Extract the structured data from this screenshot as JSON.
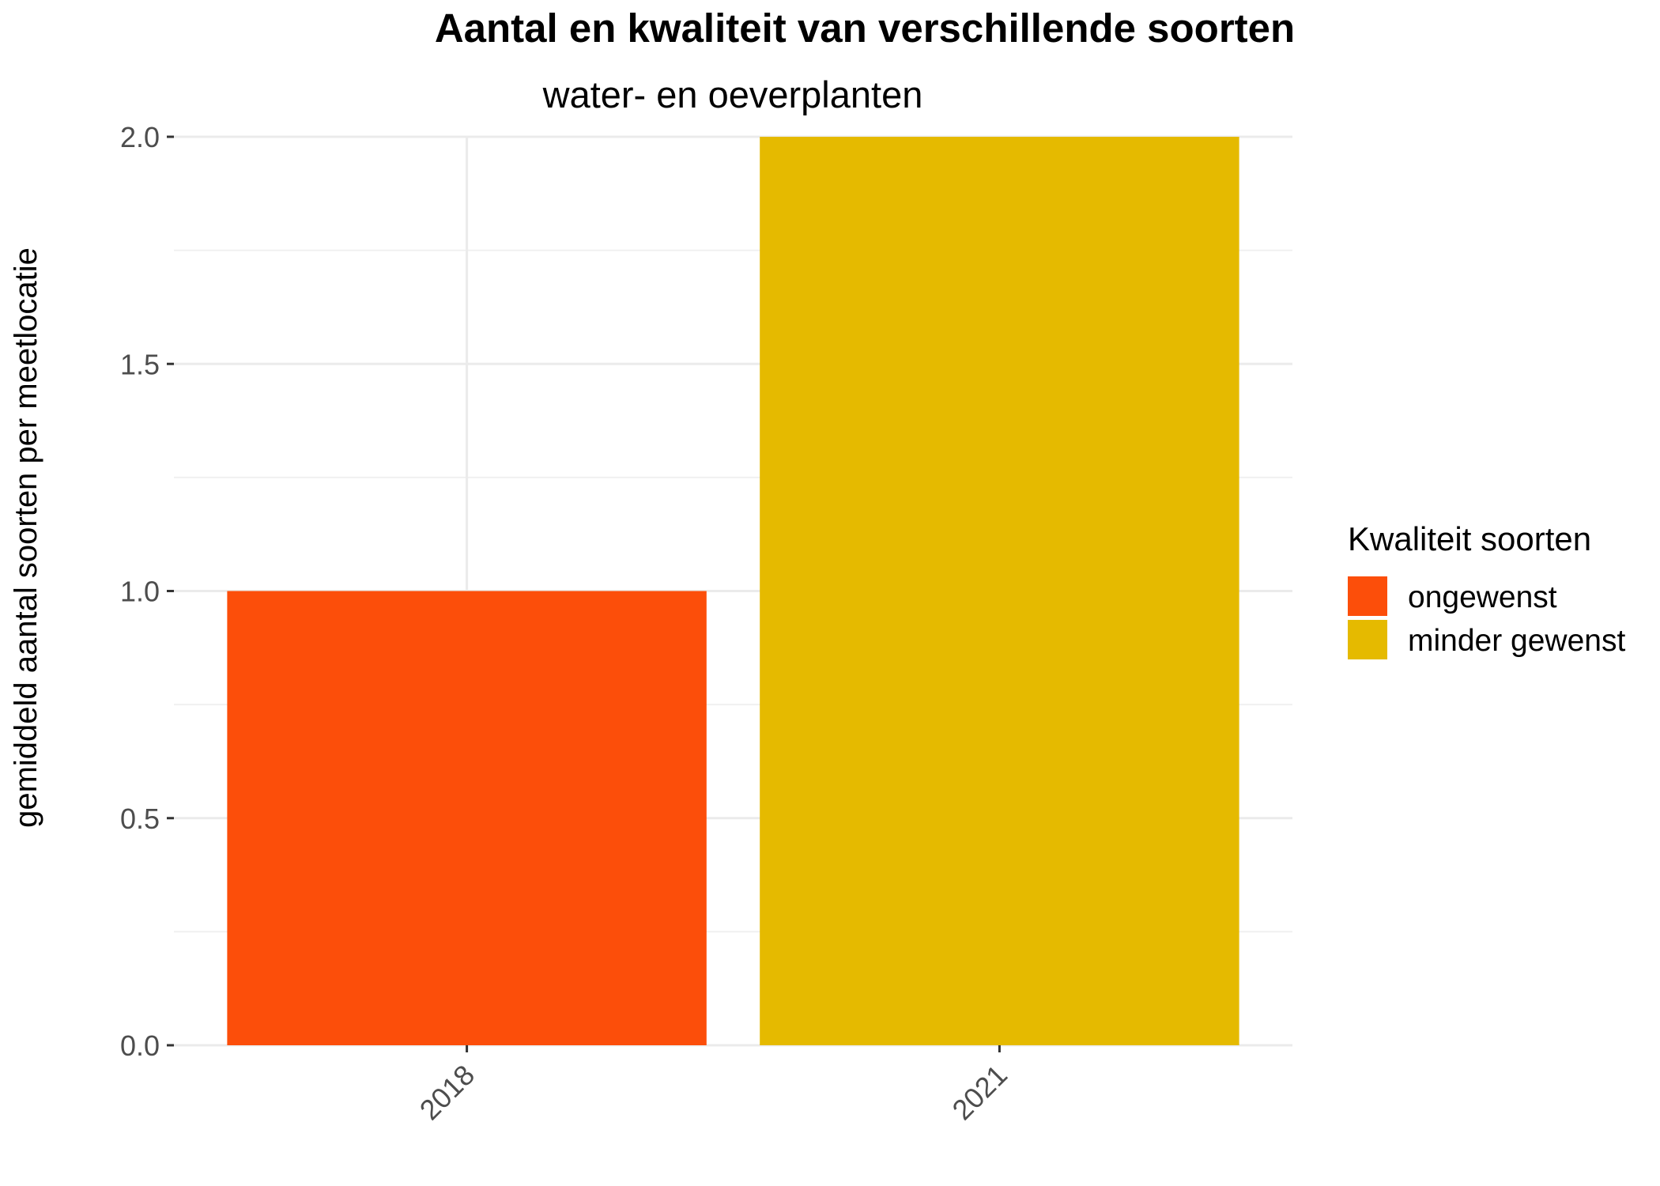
{
  "chart_data": {
    "type": "bar",
    "title": "Aantal en kwaliteit van verschillende soorten",
    "subtitle": "water- en oeverplanten",
    "xlabel": "",
    "ylabel": "gemiddeld aantal soorten per meetlocatie",
    "categories": [
      "2018",
      "2021"
    ],
    "values": [
      1.0,
      2.0
    ],
    "bar_series": [
      "ongewenst",
      "minder gewenst"
    ],
    "ylim": [
      0,
      2
    ],
    "y_ticks": [
      "0.0",
      "0.5",
      "1.0",
      "1.5",
      "2.0"
    ],
    "grid": true,
    "legend_position": "right",
    "legend": {
      "title": "Kwaliteit soorten",
      "entries": [
        {
          "label": "ongewenst",
          "color": "#FC4E0A"
        },
        {
          "label": "minder gewenst",
          "color": "#E5BA00"
        }
      ]
    }
  }
}
